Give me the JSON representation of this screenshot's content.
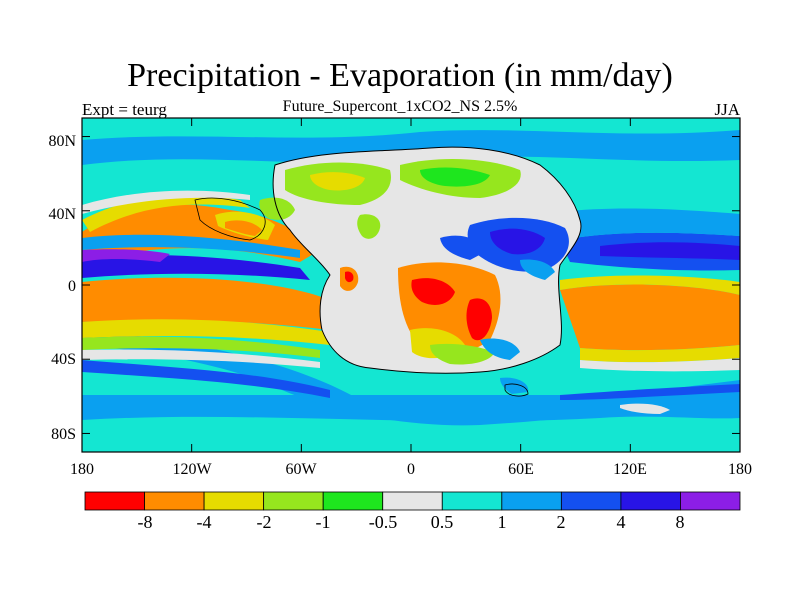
{
  "title": "Precipitation - Evaporation (in mm/day)",
  "subtitle": "Future_Supercont_1xCO2_NS 2.5%",
  "left_string": "Expt = teurg",
  "right_string": "JJA",
  "y_axis": {
    "ticks": [
      "80N",
      "40N",
      "0",
      "40S",
      "80S"
    ],
    "tick_values": [
      80,
      40,
      0,
      -40,
      -80
    ]
  },
  "x_axis": {
    "ticks": [
      "180",
      "120W",
      "60W",
      "0",
      "60E",
      "120E",
      "180"
    ],
    "tick_values": [
      -180,
      -120,
      -60,
      0,
      60,
      120,
      180
    ]
  },
  "colorbar": {
    "levels": [
      "-8",
      "-4",
      "-2",
      "-1",
      "-0.5",
      "0.5",
      "1",
      "2",
      "4",
      "8"
    ],
    "colors": [
      "#ff0000",
      "#ff8c00",
      "#e6dc00",
      "#96e61e",
      "#1ee61e",
      "#e6e6e6",
      "#14e6d2",
      "#0aa0f0",
      "#1450f0",
      "#2814e6",
      "#8c1ee6"
    ]
  },
  "palette": {
    "dry_strong": "#ff0000",
    "dry": "#ff8c00",
    "dry_mild": "#e6dc00",
    "dry_weak": "#96e61e",
    "dry_slight": "#1ee61e",
    "neutral": "#e6e6e6",
    "wet_slight": "#14e6d2",
    "wet_weak": "#0aa0f0",
    "wet_mild": "#1450f0",
    "wet": "#2814e6",
    "wet_strong": "#8c1ee6"
  }
}
